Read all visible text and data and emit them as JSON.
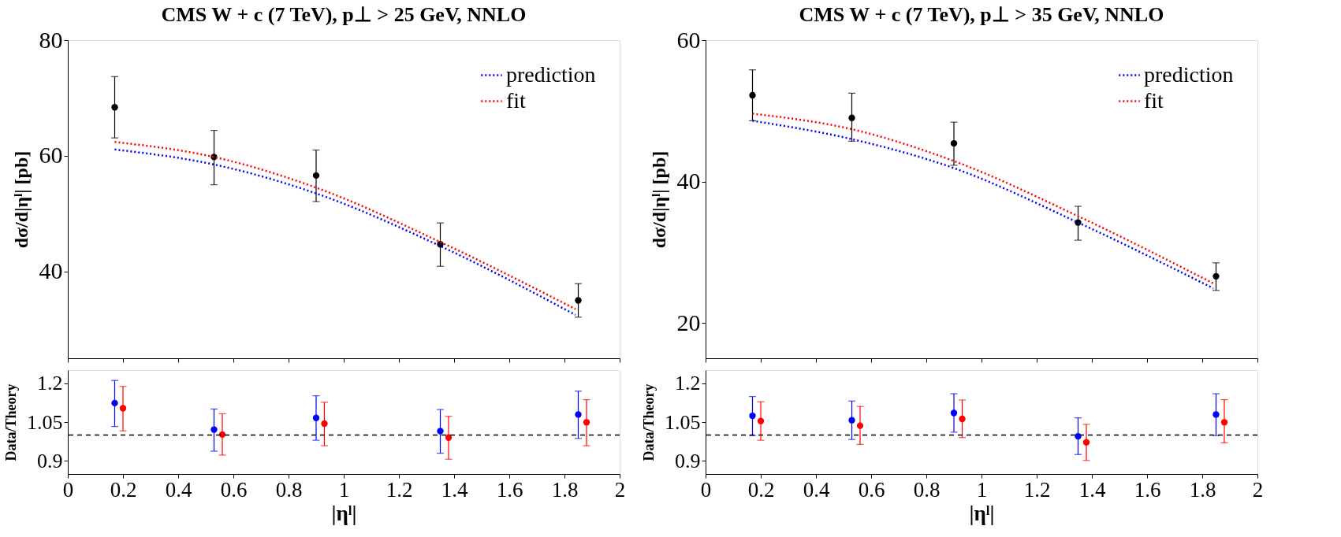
{
  "chart_data": [
    {
      "type": "line",
      "title": "CMS W + c (7 TeV), p⊥ > 25 GeV, NNLO",
      "ylabel": "dσ/d|ηˡ| [pb]",
      "xlim": [
        0,
        2
      ],
      "xticks": [
        0,
        0.2,
        0.4,
        0.6,
        0.8,
        1,
        1.2,
        1.4,
        1.6,
        1.8,
        2
      ],
      "ylim": [
        25,
        80
      ],
      "yticks": [
        40,
        60,
        80
      ],
      "tick_labels": "y",
      "legend": "top right",
      "series": [
        {
          "type": "scatter",
          "color": "#000000",
          "marker": "circle",
          "x": [
            0.17,
            0.53,
            0.9,
            1.35,
            1.85
          ],
          "values": [
            68.4,
            59.8,
            56.6,
            44.7,
            35.0
          ],
          "errors": [
            [
              63.1,
              73.7
            ],
            [
              55.0,
              64.4
            ],
            [
              52.1,
              61.0
            ],
            [
              40.9,
              48.4
            ],
            [
              32.1,
              37.9
            ]
          ]
        },
        {
          "type": "line",
          "name": "prediction",
          "color": "#0000ff",
          "line_style": "dotted",
          "x": [
            0.17,
            0.53,
            0.9,
            1.35,
            1.84
          ],
          "values": [
            61.1,
            58.5,
            53.5,
            44.4,
            32.5
          ]
        },
        {
          "type": "line",
          "name": "fit",
          "color": "#ff0000",
          "line_style": "dotted",
          "x": [
            0.17,
            0.53,
            0.9,
            1.35,
            1.84
          ],
          "values": [
            62.4,
            59.8,
            54.5,
            45.1,
            33.5
          ]
        }
      ]
    },
    {
      "type": "line",
      "title": "CMS W + c (7 TeV), p⊥ > 35 GeV, NNLO",
      "ylabel": "dσ/d|ηˡ| [pb]",
      "xlim": [
        0,
        2
      ],
      "xticks": [
        0,
        0.2,
        0.4,
        0.6,
        0.8,
        1,
        1.2,
        1.4,
        1.6,
        1.8,
        2
      ],
      "ylim": [
        15,
        60
      ],
      "yticks": [
        20,
        40,
        60
      ],
      "tick_labels": "y",
      "legend": "top right",
      "series": [
        {
          "type": "scatter",
          "color": "#000000",
          "marker": "circle",
          "x": [
            0.17,
            0.53,
            0.9,
            1.35,
            1.85
          ],
          "values": [
            52.2,
            49.0,
            45.4,
            34.2,
            26.6
          ],
          "errors": [
            [
              48.6,
              55.8
            ],
            [
              45.7,
              52.5
            ],
            [
              42.3,
              48.4
            ],
            [
              31.7,
              36.5
            ],
            [
              24.6,
              28.5
            ]
          ]
        },
        {
          "type": "line",
          "name": "prediction",
          "color": "#0000ff",
          "line_style": "dotted",
          "x": [
            0.17,
            0.53,
            0.9,
            1.35,
            1.84
          ],
          "values": [
            48.6,
            46.0,
            41.9,
            34.2,
            24.9
          ]
        },
        {
          "type": "line",
          "name": "fit",
          "color": "#ff0000",
          "line_style": "dotted",
          "x": [
            0.17,
            0.53,
            0.9,
            1.35,
            1.84
          ],
          "values": [
            49.6,
            47.4,
            42.9,
            35.1,
            25.6
          ]
        }
      ]
    },
    {
      "type": "scatter",
      "xlabel": "|ηˡ|",
      "ylabel": "Data/Theory",
      "xlim": [
        0,
        2
      ],
      "xticks": [
        0,
        0.2,
        0.4,
        0.6,
        0.8,
        1,
        1.2,
        1.4,
        1.6,
        1.8,
        2
      ],
      "ylim": [
        0.85,
        1.25
      ],
      "yticks": [
        0.9,
        1.05,
        1.2
      ],
      "marker": "circle",
      "ref_lines": [
        {
          "axis": "y",
          "value": 1,
          "color": "#000000",
          "line_style": "dashed"
        }
      ],
      "series": [
        {
          "color": "#0000ff",
          "x": [
            0.17,
            0.53,
            0.9,
            1.35,
            1.85
          ],
          "values": [
            1.123,
            1.021,
            1.066,
            1.015,
            1.079
          ],
          "errors": [
            [
              1.033,
              1.21
            ],
            [
              0.938,
              1.1
            ],
            [
              0.98,
              1.151
            ],
            [
              0.93,
              1.098
            ],
            [
              0.987,
              1.169
            ]
          ]
        },
        {
          "color": "#ff0000",
          "x": [
            0.2,
            0.56,
            0.93,
            1.38,
            1.88
          ],
          "values": [
            1.103,
            1.002,
            1.044,
            0.99,
            1.049
          ],
          "errors": [
            [
              1.016,
              1.187
            ],
            [
              0.923,
              1.082
            ],
            [
              0.959,
              1.126
            ],
            [
              0.907,
              1.072
            ],
            [
              0.959,
              1.136
            ]
          ]
        }
      ]
    },
    {
      "type": "scatter",
      "xlabel": "|ηˡ|",
      "ylabel": "Data/Theory",
      "xlim": [
        0,
        2
      ],
      "xticks": [
        0,
        0.2,
        0.4,
        0.6,
        0.8,
        1,
        1.2,
        1.4,
        1.6,
        1.8,
        2
      ],
      "ylim": [
        0.85,
        1.25
      ],
      "yticks": [
        0.9,
        1.05,
        1.2
      ],
      "marker": "circle",
      "ref_lines": [
        {
          "axis": "y",
          "value": 1,
          "color": "#000000",
          "line_style": "dashed"
        }
      ],
      "series": [
        {
          "color": "#0000ff",
          "x": [
            0.17,
            0.53,
            0.9,
            1.35,
            1.85
          ],
          "values": [
            1.074,
            1.057,
            1.085,
            0.995,
            1.079
          ],
          "errors": [
            [
              0.998,
              1.148
            ],
            [
              0.983,
              1.131
            ],
            [
              1.011,
              1.159
            ],
            [
              0.925,
              1.066
            ],
            [
              0.998,
              1.159
            ]
          ]
        },
        {
          "color": "#ff0000",
          "x": [
            0.2,
            0.56,
            0.93,
            1.38,
            1.88
          ],
          "values": [
            1.054,
            1.036,
            1.062,
            0.972,
            1.049
          ],
          "errors": [
            [
              0.98,
              1.128
            ],
            [
              0.964,
              1.11
            ],
            [
              0.99,
              1.135
            ],
            [
              0.902,
              1.041
            ],
            [
              0.97,
              1.136
            ]
          ]
        }
      ]
    }
  ]
}
